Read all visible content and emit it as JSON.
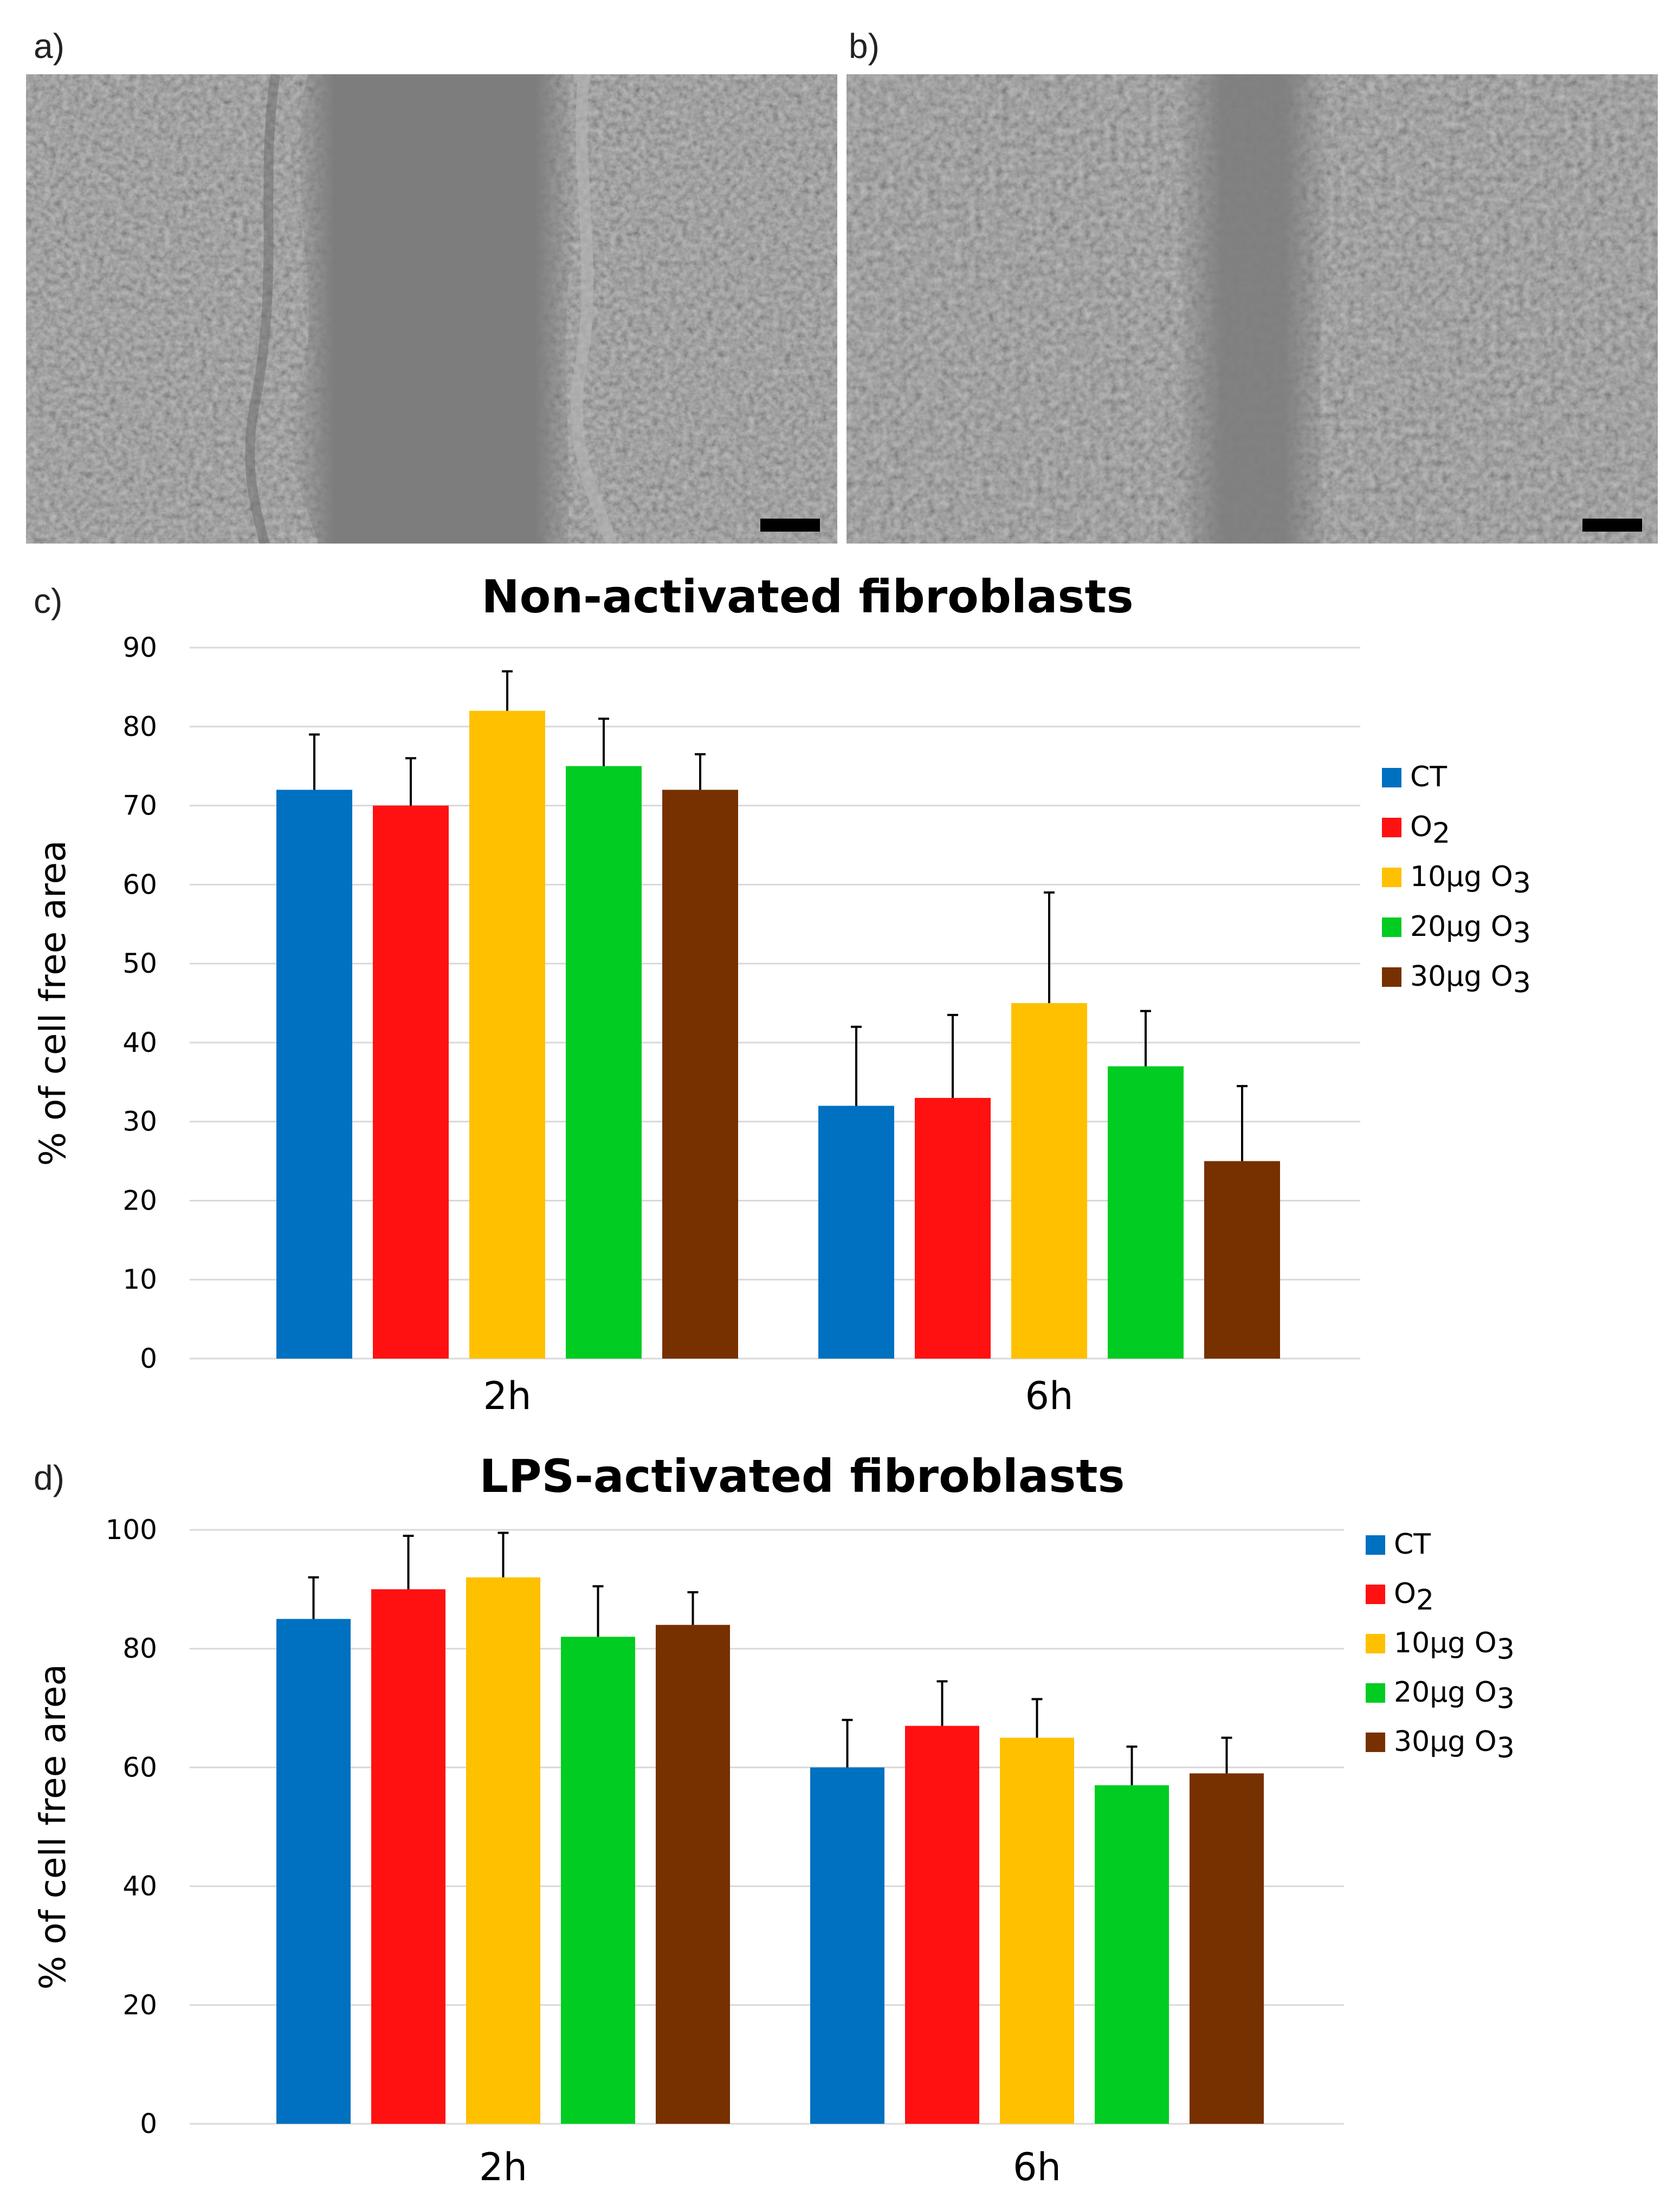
{
  "panels": {
    "a": "a)",
    "b": "b)",
    "c": "c)",
    "d": "d)"
  },
  "colors": {
    "CT": "#0070c0",
    "O2": "#ff1111",
    "10ug": "#ffc000",
    "20ug": "#00cc22",
    "30ug": "#773000",
    "grid": "#d9d9d9",
    "micrograph": "#7f7f7f"
  },
  "chart_data": [
    {
      "type": "bar",
      "title": "Non-activated fibroblasts",
      "ylabel": "% of cell free area",
      "xlabel": "",
      "ylim": [
        0,
        90
      ],
      "yticks": [
        0,
        10,
        20,
        30,
        40,
        50,
        60,
        70,
        80,
        90
      ],
      "grid": true,
      "legend_position": "right",
      "categories": [
        "2h",
        "6h"
      ],
      "series": [
        {
          "name": "CT",
          "name_main": "CT",
          "name_sub": "",
          "values": [
            72,
            32
          ],
          "errors": [
            7,
            10
          ]
        },
        {
          "name": "O2",
          "name_main": "O",
          "name_sub": "2",
          "values": [
            70,
            33
          ],
          "errors": [
            6,
            10.5
          ]
        },
        {
          "name": "10µg O3",
          "name_main": "10µg O",
          "name_sub": "3",
          "values": [
            82,
            45
          ],
          "errors": [
            5,
            14
          ]
        },
        {
          "name": "20µg O3",
          "name_main": "20µg O",
          "name_sub": "3",
          "values": [
            75,
            37
          ],
          "errors": [
            6,
            7
          ]
        },
        {
          "name": "30µg O3",
          "name_main": "30µg O",
          "name_sub": "3",
          "values": [
            72,
            25
          ],
          "errors": [
            4.5,
            9.5
          ]
        }
      ]
    },
    {
      "type": "bar",
      "title": "LPS-activated fibroblasts",
      "ylabel": "% of cell free area",
      "xlabel": "",
      "ylim": [
        0,
        100
      ],
      "yticks": [
        0,
        20,
        40,
        60,
        80,
        100
      ],
      "grid": true,
      "legend_position": "top-right",
      "categories": [
        "2h",
        "6h"
      ],
      "series": [
        {
          "name": "CT",
          "name_main": "CT",
          "name_sub": "",
          "values": [
            85,
            60
          ],
          "errors": [
            7,
            8
          ]
        },
        {
          "name": "O2",
          "name_main": "O",
          "name_sub": "2",
          "values": [
            90,
            67
          ],
          "errors": [
            9,
            7.5
          ]
        },
        {
          "name": "10µg O3",
          "name_main": "10µg O",
          "name_sub": "3",
          "values": [
            92,
            65
          ],
          "errors": [
            7.5,
            6.5
          ]
        },
        {
          "name": "20µg O3",
          "name_main": "20µg O",
          "name_sub": "3",
          "values": [
            82,
            57
          ],
          "errors": [
            8.5,
            6.5
          ]
        },
        {
          "name": "30µg O3",
          "name_main": "30µg O",
          "name_sub": "3",
          "values": [
            84,
            59
          ],
          "errors": [
            5.5,
            6
          ]
        }
      ]
    }
  ]
}
